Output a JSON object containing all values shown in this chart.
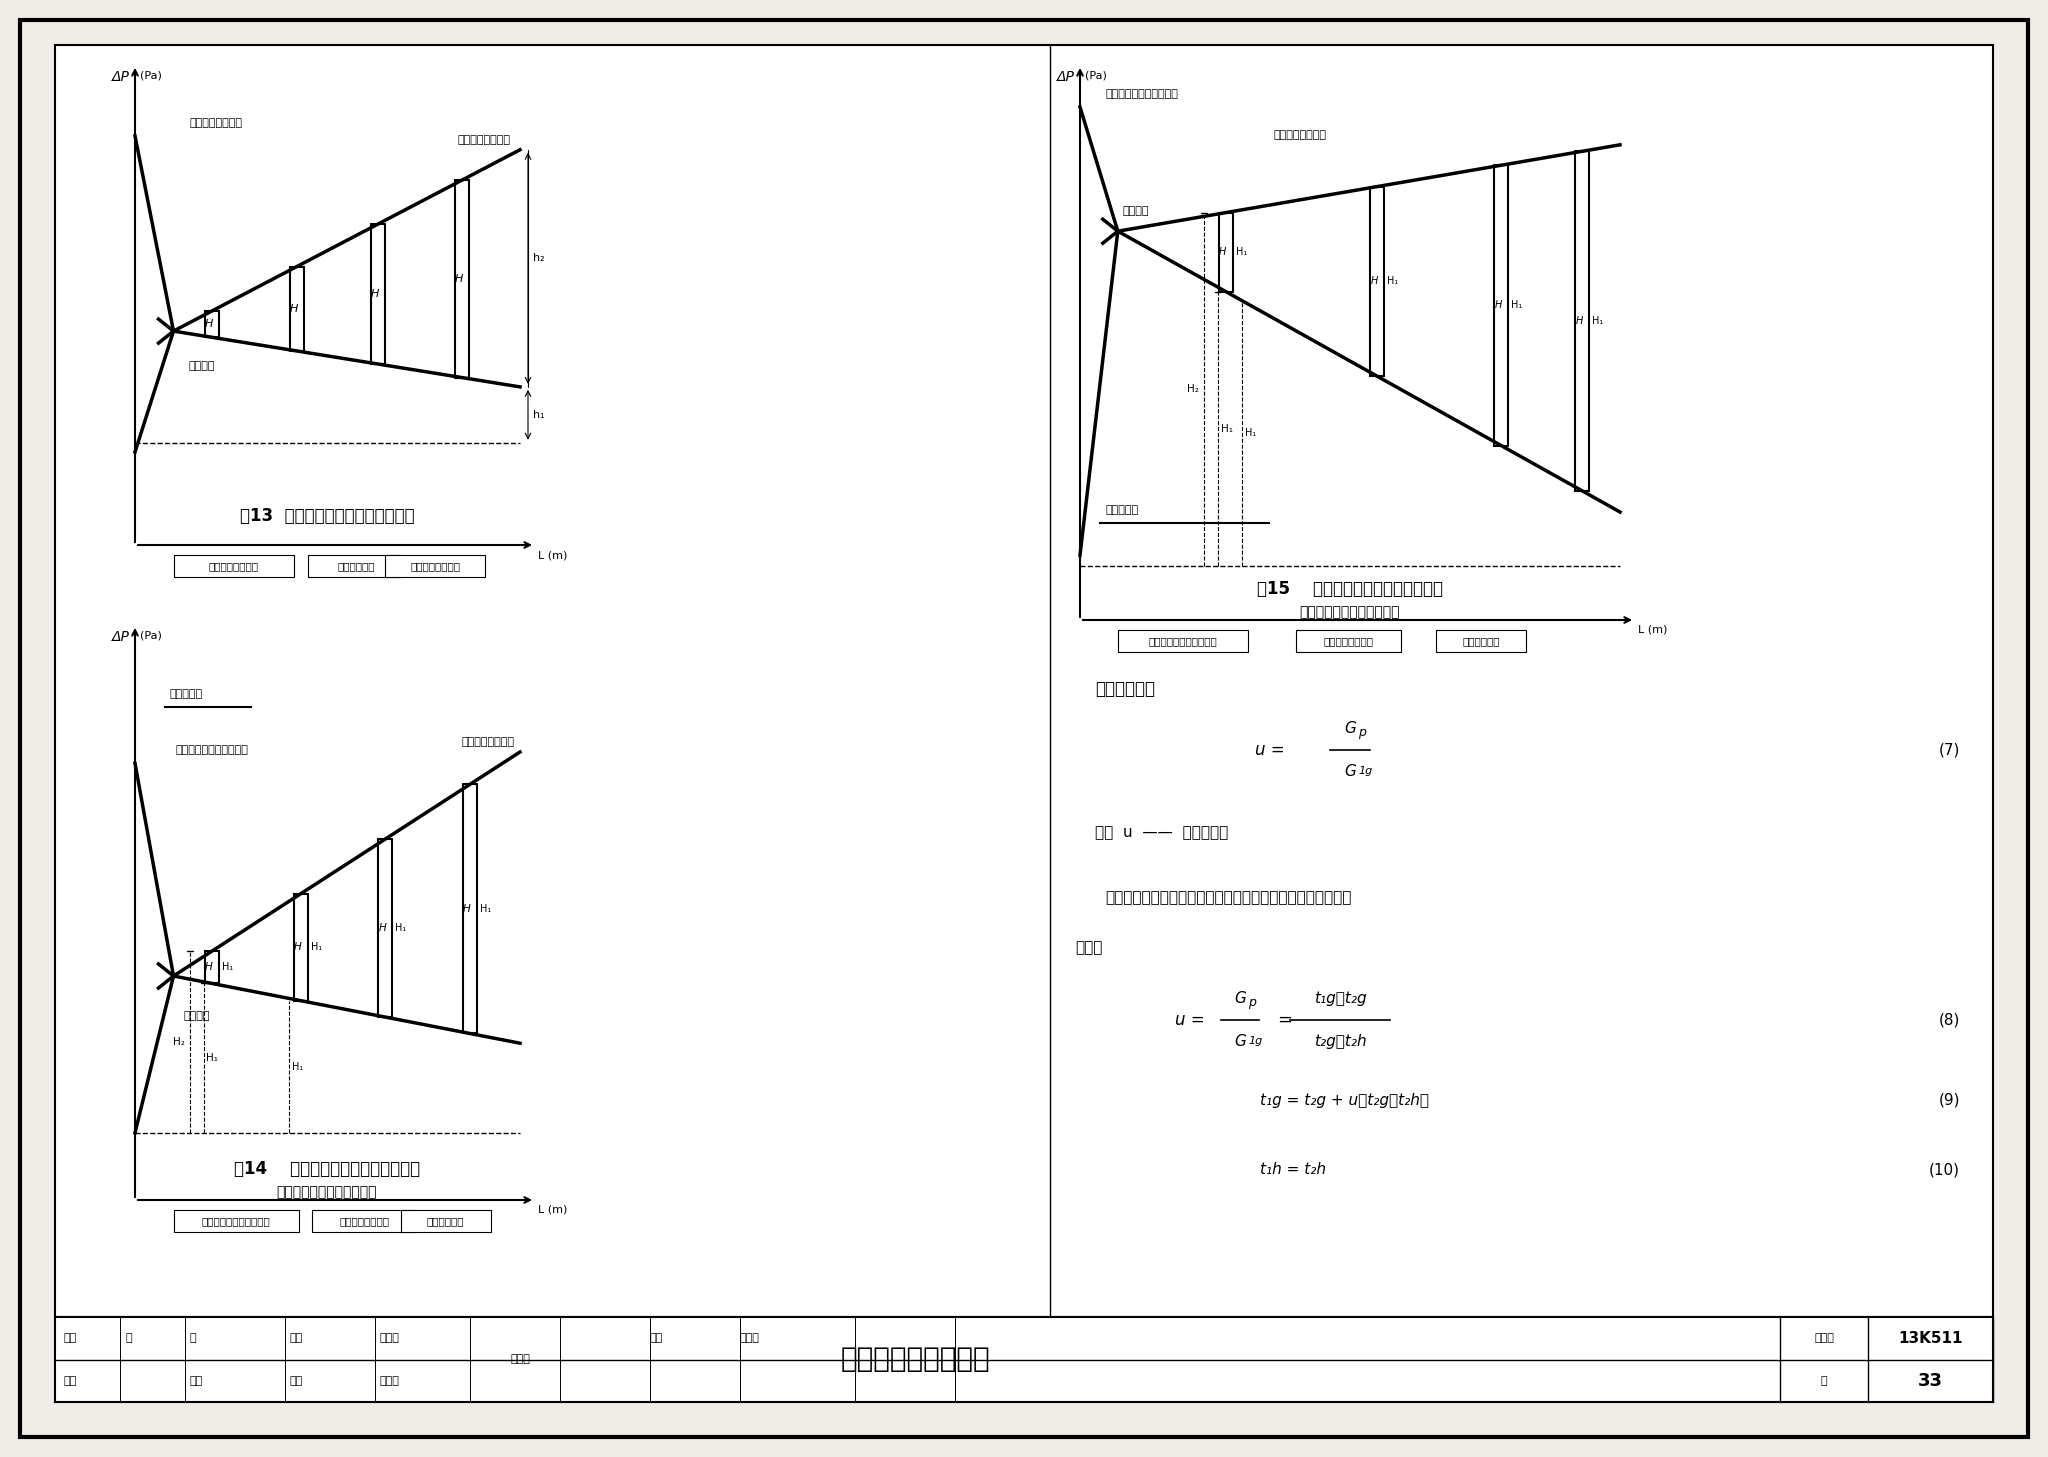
{
  "bg_color": "#f0ede8",
  "white": "#ffffff",
  "black": "#000000",
  "fig13_title": "图13  分布式二级混水泵系统水压图",
  "fig14_title": "图14    分布式三级混水泵系统水压图",
  "fig14_subtitle": "（管网泵安装在供水管上）",
  "fig15_title": "图15    分布式三级混水泵系统水压图",
  "fig15_subtitle": "（管网泵安装在回水管上）",
  "bottom_title": "多级混水泵系统说明",
  "atlas_num": "13K511",
  "page_num": "33"
}
